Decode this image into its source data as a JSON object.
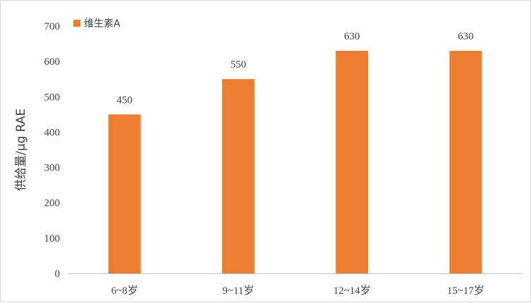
{
  "chart_data": {
    "type": "bar",
    "categories": [
      "6~8岁",
      "9~11岁",
      "12~14岁",
      "15~17岁"
    ],
    "series": [
      {
        "name": "维生素A",
        "values": [
          450,
          550,
          630,
          630
        ],
        "color": "#ED7D31"
      }
    ],
    "ylabel": "供给量/μg RAE",
    "ylim": [
      0,
      700
    ],
    "yticks": [
      0,
      100,
      200,
      300,
      400,
      500,
      600,
      700
    ],
    "grid": false,
    "legend": "top-left",
    "data_labels": true
  }
}
